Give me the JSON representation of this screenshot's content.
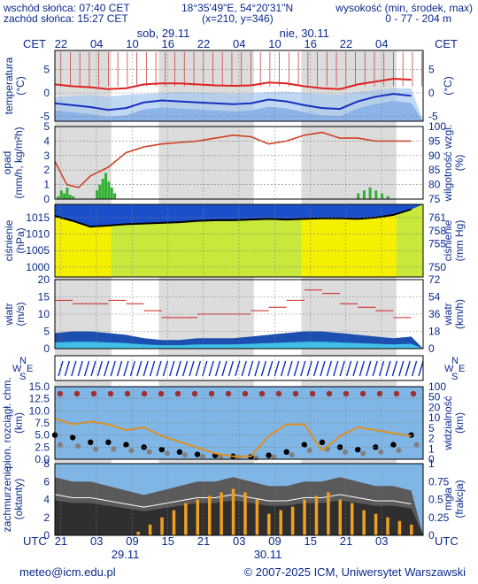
{
  "header": {
    "sunrise": "wschód słońca: 07:40 CET",
    "sunset": "zachód słońca: 15:27 CET",
    "coords": "18°35'49\"E, 54°20'31\"N",
    "grid": "(x=210,  y=346)",
    "height_label": "wysokość (min, środek, max)",
    "height_values": "0 - 77 - 204 m"
  },
  "time_axis": {
    "top_label": "CET",
    "bottom_label": "UTC",
    "day_labels_top": [
      "sob, 29.11",
      "nie, 30.11"
    ],
    "day_labels_bottom": [
      "29.11",
      "30.11"
    ],
    "cet_hours": [
      "22",
      "04",
      "10",
      "16",
      "22",
      "04",
      "10",
      "16",
      "22",
      "04"
    ],
    "utc_hours": [
      "21",
      "03",
      "09",
      "15",
      "21",
      "03",
      "09",
      "15",
      "21",
      "03"
    ]
  },
  "panels": {
    "temperature": {
      "left": [
        "temperatura",
        "(°C)"
      ],
      "right": [
        "(°C)"
      ]
    },
    "precip": {
      "left": [
        "opad",
        "(mm/h, kg/m²h)"
      ],
      "right": [
        "wilgotność wzgl.",
        "(%)"
      ]
    },
    "pressure": {
      "left": [
        "ciśnienie",
        "(hPa)"
      ],
      "right": [
        "ciśnienie",
        "(mm Hg)"
      ]
    },
    "wind": {
      "left": [
        "wiatr",
        "(m/s)"
      ],
      "right": [
        "wiatr",
        "(km/h)"
      ]
    },
    "winddir": {
      "compass": [
        "N",
        "W",
        "E",
        "S"
      ]
    },
    "visibility": {
      "left": [
        "pion. rozciągł. chm.",
        "(km)"
      ],
      "right": [
        "widzialność",
        "(km)"
      ]
    },
    "clouds": {
      "left": [
        "zachmurzenie",
        "(oktanty)"
      ],
      "right": [
        "mgła",
        "(frakcja)"
      ]
    }
  },
  "footer": {
    "email": "meteo@icm.edu.pl",
    "copyright": "© 2007-2025 ICM, Uniwersytet Warszawski"
  },
  "colors": {
    "text": "#0a2a8c",
    "temp_line": "#e02020",
    "temp_dew": "#1530c0",
    "humidity_line": "#d04020",
    "precip_bar": "#30b030",
    "pressure_line": "#000000",
    "wind_line": "#cc2020",
    "fog_bar": "#f0a020"
  },
  "chart_data": [
    {
      "type": "line",
      "title": "temperatura",
      "hours_from_start": [
        0,
        3,
        6,
        9,
        12,
        15,
        18,
        21,
        24,
        27,
        30,
        33,
        36,
        39,
        42,
        45,
        48,
        51,
        54,
        57,
        60
      ],
      "series": [
        {
          "name": "temperatura",
          "values": [
            1.8,
            1.4,
            1.2,
            0.8,
            1.0,
            1.8,
            2.0,
            2.0,
            1.8,
            1.6,
            1.5,
            1.6,
            2.2,
            2.0,
            1.4,
            1.0,
            0.8,
            1.8,
            2.4,
            3.0,
            2.8
          ]
        },
        {
          "name": "temperatura odczuwalna",
          "values": [
            -2.2,
            -2.6,
            -3.0,
            -3.6,
            -3.2,
            -2.0,
            -1.6,
            -1.8,
            -2.0,
            -2.2,
            -2.4,
            -2.2,
            -1.4,
            -1.8,
            -2.6,
            -3.2,
            -3.4,
            -1.8,
            -0.8,
            -0.2,
            -0.6
          ]
        },
        {
          "name": "punkt rosy",
          "values": [
            -1.0,
            -0.6,
            -0.4,
            -0.8,
            -0.4,
            -0.2,
            0.0,
            0.2,
            0.1,
            0.0,
            -0.2,
            -0.1,
            0.2,
            0.3,
            0.0,
            -0.2,
            -0.4,
            0.2,
            0.6,
            1.0,
            1.0
          ]
        }
      ],
      "ylim": [
        -6,
        9
      ],
      "yticks": [
        -5,
        0,
        5
      ]
    },
    {
      "type": "bar",
      "title": "opad",
      "series": [
        {
          "name": "opad",
          "hours": [
            0.5,
            1,
            1.5,
            2,
            2.5,
            3,
            7,
            7.5,
            8,
            8.5,
            9,
            9.5,
            10,
            51,
            52,
            53,
            54,
            55,
            56
          ],
          "values": [
            0.2,
            0.6,
            0.4,
            0.8,
            0.3,
            0.2,
            0.6,
            1.0,
            1.4,
            1.8,
            1.2,
            0.8,
            0.4,
            0.4,
            0.6,
            0.8,
            0.6,
            0.4,
            0.2
          ]
        },
        {
          "name": "wilgotność wzgl.",
          "hours": [
            0,
            2,
            4,
            6,
            9,
            12,
            15,
            18,
            21,
            24,
            27,
            30,
            33,
            36,
            39,
            42,
            45,
            48,
            51,
            54,
            57,
            60
          ],
          "values": [
            88,
            80,
            79,
            83,
            86,
            91,
            93,
            94,
            94.5,
            95,
            96,
            97,
            96.5,
            94,
            95,
            97,
            98,
            96,
            96,
            95,
            95,
            95
          ]
        }
      ],
      "ylim": [
        0,
        5
      ],
      "yticks": [
        0,
        1,
        2,
        3,
        4,
        5
      ],
      "y2lim": [
        75,
        100
      ],
      "y2ticks": [
        75,
        80,
        85,
        90,
        95,
        100
      ]
    },
    {
      "type": "line",
      "title": "ciśnienie",
      "hours_from_start": [
        0,
        3,
        6,
        9,
        12,
        15,
        18,
        21,
        24,
        27,
        30,
        33,
        36,
        39,
        42,
        45,
        48,
        51,
        54,
        57,
        60
      ],
      "series": [
        {
          "name": "ciśnienie",
          "values": [
            1015.5,
            1014.0,
            1012.2,
            1012.6,
            1013.0,
            1013.2,
            1013.4,
            1013.6,
            1014.0,
            1014.2,
            1014.2,
            1014.4,
            1014.6,
            1014.4,
            1014.6,
            1014.8,
            1014.8,
            1014.6,
            1015.0,
            1015.8,
            1017.5
          ]
        }
      ],
      "ylim": [
        997,
        1019
      ],
      "yticks": [
        1000,
        1005,
        1010,
        1015
      ],
      "y2ticks": [
        750,
        755,
        758,
        761
      ]
    },
    {
      "type": "line",
      "title": "wiatr",
      "hours_from_start": [
        0,
        3,
        6,
        9,
        12,
        15,
        18,
        21,
        24,
        27,
        30,
        33,
        36,
        39,
        42,
        45,
        48,
        51,
        54,
        57,
        60
      ],
      "series": [
        {
          "name": "porywy",
          "values": [
            14,
            13,
            13,
            14,
            13,
            11,
            9,
            9,
            10,
            10,
            10,
            11,
            12,
            14,
            17,
            16,
            13,
            12,
            11,
            9,
            9
          ]
        },
        {
          "name": "wiatr",
          "values": [
            4.5,
            5.0,
            5.0,
            4.5,
            4.0,
            3.0,
            2.5,
            2.5,
            3.0,
            3.0,
            3.0,
            3.5,
            4.0,
            4.5,
            5.0,
            5.0,
            4.5,
            4.0,
            3.5,
            3.0,
            3.5
          ]
        }
      ],
      "ylim": [
        0,
        20
      ],
      "yticks": [
        0,
        5,
        10,
        15,
        20
      ],
      "y2ticks": [
        0,
        18,
        36,
        54,
        72
      ]
    },
    {
      "type": "scatter",
      "title": "pion. rozciągł. chm. / widzialność",
      "hours_from_start": [
        0,
        3,
        6,
        9,
        12,
        15,
        18,
        21,
        24,
        27,
        30,
        33,
        36,
        39,
        42,
        45,
        48,
        51,
        54,
        57,
        60
      ],
      "series": [
        {
          "name": "pion. rozciągł. chm. (km)",
          "values": [
            5.0,
            4.5,
            3.5,
            3.5,
            3.0,
            2.5,
            2.0,
            1.5,
            1.0,
            0.8,
            0.6,
            0.5,
            0.8,
            1.5,
            3.0,
            3.5,
            2.5,
            2.0,
            2.5,
            3.0,
            5.0
          ]
        },
        {
          "name": "widzialność (km)",
          "values": [
            7.0,
            6.0,
            6.5,
            6.0,
            5.0,
            5.5,
            4.0,
            3.0,
            2.0,
            1.0,
            0.5,
            0.5,
            4.0,
            6.0,
            6.0,
            1.5,
            4.0,
            5.5,
            5.0,
            4.5,
            4.0
          ]
        }
      ],
      "ylim": [
        0,
        15
      ],
      "yticks": [
        0,
        2.5,
        5,
        7.5,
        10,
        12.5,
        15
      ],
      "y2lim": [
        0,
        100
      ],
      "y2ticks": [
        0,
        1,
        2,
        5,
        10,
        20,
        50,
        100
      ]
    },
    {
      "type": "bar",
      "title": "zachmurzenie / mgła",
      "series": [
        {
          "name": "zachmurzenie",
          "hours": [
            0,
            3,
            6,
            9,
            12,
            15,
            18,
            21,
            24,
            27,
            30,
            33,
            36,
            39,
            42,
            45,
            48,
            51,
            54,
            57,
            60
          ],
          "values": [
            6.5,
            6.0,
            6.0,
            5.5,
            5.0,
            4.5,
            5.0,
            5.5,
            6.0,
            6.0,
            6.5,
            6.0,
            5.5,
            5.5,
            6.0,
            6.0,
            6.5,
            6.0,
            5.5,
            5.5,
            5.0
          ]
        },
        {
          "name": "mgła",
          "hours": [
            14,
            16,
            18,
            20,
            22,
            24,
            26,
            28,
            30,
            32,
            34,
            36,
            38,
            40,
            42,
            44,
            46,
            48,
            50,
            52,
            54,
            56,
            58,
            60
          ],
          "values": [
            0.05,
            0.15,
            0.25,
            0.35,
            0.45,
            0.5,
            0.55,
            0.6,
            0.65,
            0.6,
            0.5,
            0.3,
            0.35,
            0.4,
            0.5,
            0.55,
            0.6,
            0.5,
            0.45,
            0.35,
            0.3,
            0.25,
            0.2,
            0.15
          ]
        }
      ],
      "ylim": [
        0,
        8
      ],
      "yticks": [
        0,
        2,
        4,
        6,
        8
      ],
      "y2lim": [
        0,
        1
      ],
      "y2ticks": [
        0,
        0.25,
        0.5,
        0.75,
        1
      ]
    }
  ]
}
